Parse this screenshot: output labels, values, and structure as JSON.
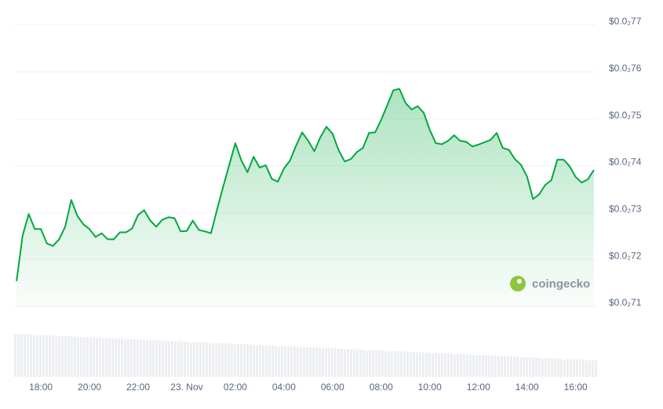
{
  "chart_data": {
    "type": "line",
    "watermark": "coingecko",
    "x": [
      17,
      17.25,
      17.5,
      17.75,
      18,
      18.25,
      18.5,
      18.75,
      19,
      19.25,
      19.5,
      19.75,
      20,
      20.25,
      20.5,
      20.75,
      21,
      21.25,
      21.5,
      21.75,
      22,
      22.25,
      22.5,
      22.75,
      23,
      23.25,
      23.5,
      23.75,
      24,
      24.25,
      24.5,
      24.75,
      25,
      25.25,
      25.5,
      25.75,
      26,
      26.25,
      26.5,
      26.75,
      27,
      27.25,
      27.5,
      27.75,
      28,
      28.25,
      28.5,
      28.75,
      29,
      29.25,
      29.5,
      29.75,
      30,
      30.25,
      30.5,
      30.75,
      31,
      31.25,
      31.5,
      31.75,
      32,
      32.25,
      32.5,
      32.75,
      33,
      33.25,
      33.5,
      33.75,
      34,
      34.25,
      34.5,
      34.75,
      35,
      35.25,
      35.5,
      35.75,
      36,
      36.25,
      36.5,
      36.75,
      37,
      37.25,
      37.5,
      37.75,
      38,
      38.25,
      38.5,
      38.75,
      39,
      39.25,
      39.5,
      39.75,
      40,
      40.25,
      40.5,
      40.75
    ],
    "series": [
      {
        "color": "#00a83e",
        "values": [
          0.007154,
          0.007251,
          0.007297,
          0.007265,
          0.007265,
          0.007234,
          0.007229,
          0.007243,
          0.00727,
          0.007327,
          0.007293,
          0.007275,
          0.007265,
          0.007248,
          0.007256,
          0.007243,
          0.007243,
          0.007258,
          0.007258,
          0.007266,
          0.007295,
          0.007305,
          0.007283,
          0.00727,
          0.007285,
          0.00729,
          0.007288,
          0.00726,
          0.007261,
          0.007283,
          0.007263,
          0.00726,
          0.007256,
          0.007307,
          0.007355,
          0.007402,
          0.007448,
          0.007411,
          0.007386,
          0.007419,
          0.007396,
          0.007401,
          0.007372,
          0.007366,
          0.007394,
          0.007411,
          0.007443,
          0.007471,
          0.007453,
          0.007431,
          0.007461,
          0.007483,
          0.007468,
          0.007433,
          0.007409,
          0.007414,
          0.007429,
          0.007438,
          0.00747,
          0.007471,
          0.007498,
          0.007529,
          0.007561,
          0.007564,
          0.007534,
          0.00752,
          0.007527,
          0.007513,
          0.007476,
          0.007448,
          0.007446,
          0.007453,
          0.007465,
          0.007453,
          0.007451,
          0.007441,
          0.007445,
          0.00745,
          0.007455,
          0.00747,
          0.007438,
          0.007434,
          0.007414,
          0.007402,
          0.007377,
          0.007329,
          0.007339,
          0.007359,
          0.007369,
          0.007413,
          0.007413,
          0.007399,
          0.007376,
          0.007364,
          0.007371,
          0.007391
        ]
      }
    ],
    "xlim": [
      16.9,
      40.85
    ],
    "xticks": [
      {
        "value": 18,
        "label": "18:00"
      },
      {
        "value": 20,
        "label": "20:00"
      },
      {
        "value": 22,
        "label": "22:00"
      },
      {
        "value": 24,
        "label": "23. Nov"
      },
      {
        "value": 26,
        "label": "02:00"
      },
      {
        "value": 28,
        "label": "04:00"
      },
      {
        "value": 30,
        "label": "06:00"
      },
      {
        "value": 32,
        "label": "08:00"
      },
      {
        "value": 34,
        "label": "10:00"
      },
      {
        "value": 36,
        "label": "12:00"
      },
      {
        "value": 38,
        "label": "14:00"
      },
      {
        "value": 40,
        "label": "16:00"
      }
    ],
    "ylim": [
      0.0071,
      0.0077
    ],
    "yticks": [
      {
        "value": 0.0071,
        "label": "$0.0₂71"
      },
      {
        "value": 0.0072,
        "label": "$0.0₂72"
      },
      {
        "value": 0.0073,
        "label": "$0.0₂73"
      },
      {
        "value": 0.0074,
        "label": "$0.0₂74"
      },
      {
        "value": 0.0075,
        "label": "$0.0₂75"
      },
      {
        "value": 0.0076,
        "label": "$0.0₂76"
      },
      {
        "value": 0.0077,
        "label": "$0.0₂77"
      }
    ],
    "grid": true
  }
}
